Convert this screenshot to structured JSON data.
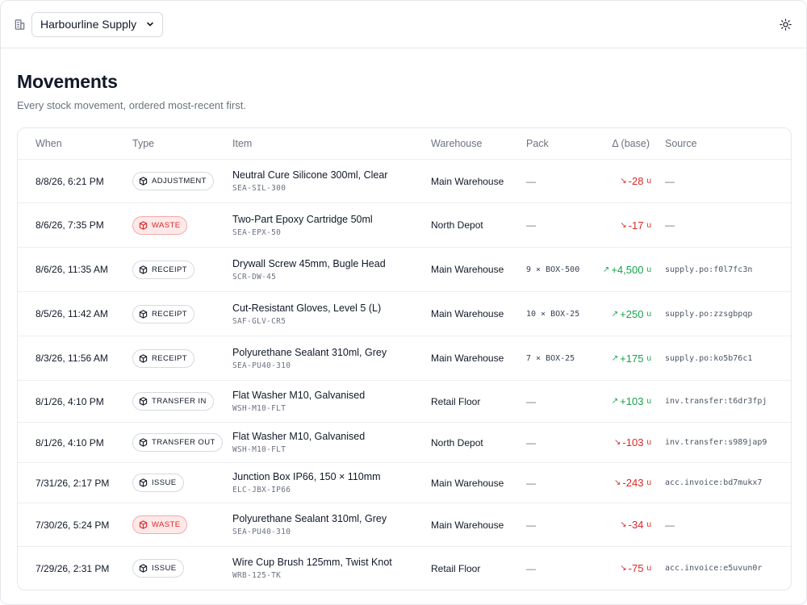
{
  "header": {
    "org_select": {
      "value": "Harbourline Supply"
    }
  },
  "page": {
    "title": "Movements",
    "subtitle": "Every stock movement, ordered most-recent first."
  },
  "table": {
    "columns": {
      "when": "When",
      "type": "Type",
      "item": "Item",
      "warehouse": "Warehouse",
      "pack": "Pack",
      "delta": "Δ (base)",
      "source": "Source"
    },
    "rows": [
      {
        "when": "8/8/26, 6:21 PM",
        "type": "ADJUSTMENT",
        "type_style": "neutral",
        "item": "Neutral Cure Silicone 300ml, Clear",
        "sku": "SEA-SIL-300",
        "warehouse": "Main Warehouse",
        "pack": "—",
        "delta": "-28",
        "direction": "neg",
        "unit": "u",
        "source": "—"
      },
      {
        "when": "8/6/26, 7:35 PM",
        "type": "WASTE",
        "type_style": "waste",
        "item": "Two-Part Epoxy Cartridge 50ml",
        "sku": "SEA-EPX-50",
        "warehouse": "North Depot",
        "pack": "—",
        "delta": "-17",
        "direction": "neg",
        "unit": "u",
        "source": "—"
      },
      {
        "when": "8/6/26, 11:35 AM",
        "type": "RECEIPT",
        "type_style": "neutral",
        "item": "Drywall Screw 45mm, Bugle Head",
        "sku": "SCR-DW-45",
        "warehouse": "Main Warehouse",
        "pack": "9 × BOX-500",
        "delta": "+4,500",
        "direction": "pos",
        "unit": "u",
        "source": "supply.po:f0l7fc3n"
      },
      {
        "when": "8/5/26, 11:42 AM",
        "type": "RECEIPT",
        "type_style": "neutral",
        "item": "Cut-Resistant Gloves, Level 5 (L)",
        "sku": "SAF-GLV-CR5",
        "warehouse": "Main Warehouse",
        "pack": "10 × BOX-25",
        "delta": "+250",
        "direction": "pos",
        "unit": "u",
        "source": "supply.po:zzsgbpqp"
      },
      {
        "when": "8/3/26, 11:56 AM",
        "type": "RECEIPT",
        "type_style": "neutral",
        "item": "Polyurethane Sealant 310ml, Grey",
        "sku": "SEA-PU40-310",
        "warehouse": "Main Warehouse",
        "pack": "7 × BOX-25",
        "delta": "+175",
        "direction": "pos",
        "unit": "u",
        "source": "supply.po:ko5b76c1"
      },
      {
        "when": "8/1/26, 4:10 PM",
        "type": "TRANSFER IN",
        "type_style": "neutral",
        "item": "Flat Washer M10, Galvanised",
        "sku": "WSH-M10-FLT",
        "warehouse": "Retail Floor",
        "pack": "—",
        "delta": "+103",
        "direction": "pos",
        "unit": "u",
        "source": "inv.transfer:t6dr3fpj"
      },
      {
        "when": "8/1/26, 4:10 PM",
        "type": "TRANSFER OUT",
        "type_style": "neutral",
        "item": "Flat Washer M10, Galvanised",
        "sku": "WSH-M10-FLT",
        "warehouse": "North Depot",
        "pack": "—",
        "delta": "-103",
        "direction": "neg",
        "unit": "u",
        "source": "inv.transfer:s989jap9"
      },
      {
        "when": "7/31/26, 2:17 PM",
        "type": "ISSUE",
        "type_style": "neutral",
        "item": "Junction Box IP66, 150 × 110mm",
        "sku": "ELC-JBX-IP66",
        "warehouse": "Main Warehouse",
        "pack": "—",
        "delta": "-243",
        "direction": "neg",
        "unit": "u",
        "source": "acc.invoice:bd7mukx7"
      },
      {
        "when": "7/30/26, 5:24 PM",
        "type": "WASTE",
        "type_style": "waste",
        "item": "Polyurethane Sealant 310ml, Grey",
        "sku": "SEA-PU40-310",
        "warehouse": "Main Warehouse",
        "pack": "—",
        "delta": "-34",
        "direction": "neg",
        "unit": "u",
        "source": "—"
      },
      {
        "when": "7/29/26, 2:31 PM",
        "type": "ISSUE",
        "type_style": "neutral",
        "item": "Wire Cup Brush 125mm, Twist Knot",
        "sku": "WRB-125-TK",
        "warehouse": "Retail Floor",
        "pack": "—",
        "delta": "-75",
        "direction": "neg",
        "unit": "u",
        "source": "acc.invoice:e5uvun0r"
      }
    ]
  },
  "icons": {
    "org": "building-icon",
    "select": "chevron-down-icon",
    "theme": "sun-icon",
    "type_neutral": "box-icon",
    "type_waste": "trash-box-icon",
    "delta_neg": "arrow-down-right-icon",
    "delta_pos": "arrow-up-right-icon"
  },
  "colors": {
    "negative": "#dc2626",
    "positive": "#16a34a",
    "waste_bg": "#fee9e9"
  }
}
